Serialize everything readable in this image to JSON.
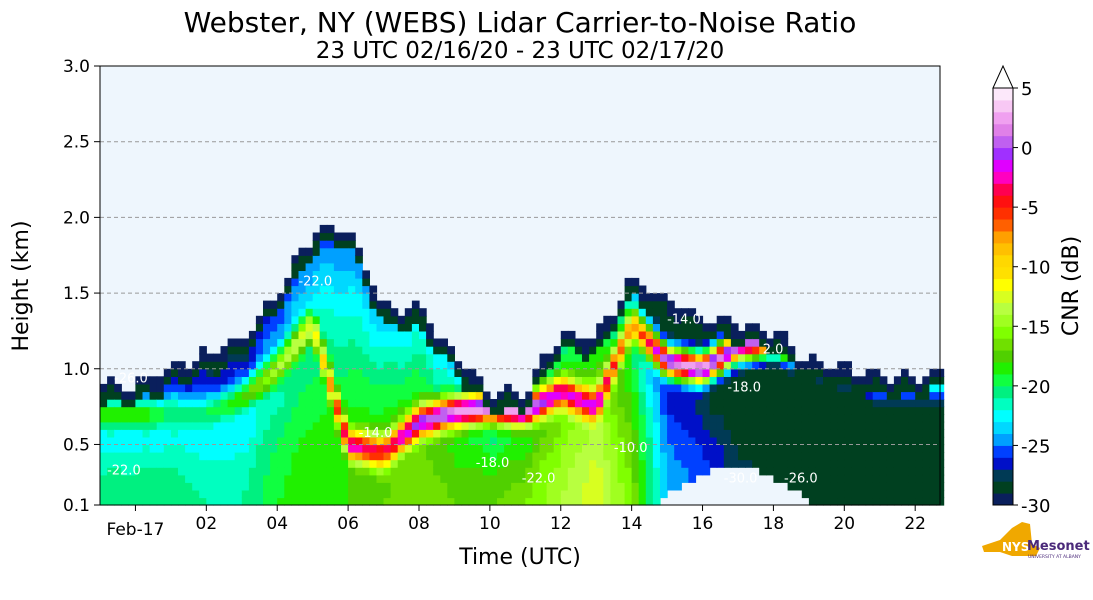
{
  "chart_data": {
    "type": "heatmap",
    "title": "Webster, NY (WEBS) Lidar Carrier-to-Noise Ratio",
    "subtitle": "23 UTC 02/16/20 - 23 UTC 02/17/20",
    "xlabel": "Time (UTC)",
    "ylabel": "Height (km)",
    "xlim_hours_since_0000_feb17": [
      -1,
      22.7
    ],
    "ylim": [
      0.1,
      3.0
    ],
    "x_ticks": [
      {
        "value": 0,
        "label": "Feb-17"
      },
      {
        "value": 2,
        "label": "02"
      },
      {
        "value": 4,
        "label": "04"
      },
      {
        "value": 6,
        "label": "06"
      },
      {
        "value": 8,
        "label": "08"
      },
      {
        "value": 10,
        "label": "10"
      },
      {
        "value": 12,
        "label": "12"
      },
      {
        "value": 14,
        "label": "14"
      },
      {
        "value": 16,
        "label": "16"
      },
      {
        "value": 18,
        "label": "18"
      },
      {
        "value": 20,
        "label": "20"
      },
      {
        "value": 22,
        "label": "22"
      }
    ],
    "y_ticks": [
      {
        "value": 0.1,
        "label": "0.1"
      },
      {
        "value": 0.5,
        "label": "0.5"
      },
      {
        "value": 1.0,
        "label": "1.0"
      },
      {
        "value": 1.5,
        "label": "1.5"
      },
      {
        "value": 2.0,
        "label": "2.0"
      },
      {
        "value": 2.5,
        "label": "2.5"
      },
      {
        "value": 3.0,
        "label": "3.0"
      }
    ],
    "grid": "horizontal-dashed",
    "colorbar": {
      "label": "CNR (dB)",
      "range": [
        -30,
        5
      ],
      "extend": "max",
      "ticks": [
        {
          "value": 5,
          "label": "5"
        },
        {
          "value": 0,
          "label": "0"
        },
        {
          "value": -5,
          "label": "-5"
        },
        {
          "value": -10,
          "label": "-10"
        },
        {
          "value": -15,
          "label": "-15"
        },
        {
          "value": -20,
          "label": "-20"
        },
        {
          "value": -25,
          "label": "-25"
        },
        {
          "value": -30,
          "label": "-30"
        }
      ],
      "colors": [
        "#0a1f5c",
        "#004020",
        "#003a55",
        "#0010c8",
        "#0040ff",
        "#00a0ff",
        "#00d8ff",
        "#00ffff",
        "#00ffc0",
        "#00f080",
        "#10ff40",
        "#20f000",
        "#50d000",
        "#70e000",
        "#80ff00",
        "#a0ff20",
        "#b8ff40",
        "#d8ff20",
        "#ffff00",
        "#ffe000",
        "#ffd800",
        "#ffc000",
        "#ffa000",
        "#ff6000",
        "#ff3000",
        "#ff1010",
        "#ff0050",
        "#ff00c0",
        "#e000ff",
        "#a030ff",
        "#c060f0",
        "#e080e8",
        "#f0a0f0",
        "#f8c8f4",
        "#fce8fa"
      ]
    },
    "profile_hours": [
      -1,
      0,
      1,
      2,
      3,
      4,
      5,
      6,
      7,
      8,
      9,
      10,
      11,
      12,
      13,
      14,
      15,
      16,
      17,
      18,
      19,
      20,
      21,
      22,
      23
    ],
    "signal_top_km": [
      0.9,
      0.9,
      1.0,
      1.1,
      1.2,
      1.5,
      1.9,
      1.95,
      1.4,
      1.4,
      1.1,
      0.85,
      0.85,
      1.25,
      1.2,
      1.6,
      1.45,
      1.35,
      1.3,
      1.25,
      1.05,
      1.0,
      0.95,
      0.95,
      1.0
    ],
    "layer_height_km": [
      0.7,
      0.7,
      0.7,
      0.7,
      0.8,
      1.0,
      1.3,
      0.5,
      0.45,
      0.65,
      0.72,
      0.75,
      0.72,
      0.85,
      0.75,
      1.3,
      1.05,
      1.0,
      1.15,
      1.2,
      1.1,
      1.0,
      0.9,
      0.9,
      0.9
    ],
    "layer_peak_cnr": [
      -18,
      -18,
      -20,
      -20,
      -18,
      -14,
      -12,
      -2,
      -4,
      0,
      2,
      3,
      2,
      -2,
      -1,
      -8,
      2,
      3,
      0,
      2,
      -14,
      -22,
      -22,
      -22,
      -22
    ],
    "surface_cnr": [
      -20,
      -20,
      -20,
      -21,
      -21,
      -19,
      -18,
      -18,
      -17,
      -16,
      -17,
      -17,
      -16,
      -14,
      -12,
      -16,
      -24,
      -25,
      -27,
      -28,
      -28,
      -28,
      -28,
      -28,
      -28
    ],
    "contour_labels": [
      {
        "t": -0.6,
        "h": 0.91,
        "text": "-26.0"
      },
      {
        "t": -0.8,
        "h": 0.3,
        "text": "-22.0"
      },
      {
        "t": 4.6,
        "h": 1.55,
        "text": "-22.0"
      },
      {
        "t": 6.3,
        "h": 0.55,
        "text": "-14.0"
      },
      {
        "t": 9.6,
        "h": 0.35,
        "text": "-18.0"
      },
      {
        "t": 10.9,
        "h": 0.25,
        "text": "-22.0"
      },
      {
        "t": 13.5,
        "h": 0.45,
        "text": "-10.0"
      },
      {
        "t": 15.0,
        "h": 1.3,
        "text": "-14.0"
      },
      {
        "t": 16.7,
        "h": 0.85,
        "text": "-18.0"
      },
      {
        "t": 16.6,
        "h": 0.25,
        "text": "-30.0"
      },
      {
        "t": 18.3,
        "h": 0.25,
        "text": "-26.0"
      },
      {
        "t": 17.7,
        "h": 1.1,
        "text": "2.0"
      }
    ]
  },
  "logo": {
    "text_main": "NYS",
    "text_brand": "Mesonet",
    "text_sub": "UNIVERSITY AT ALBANY"
  }
}
